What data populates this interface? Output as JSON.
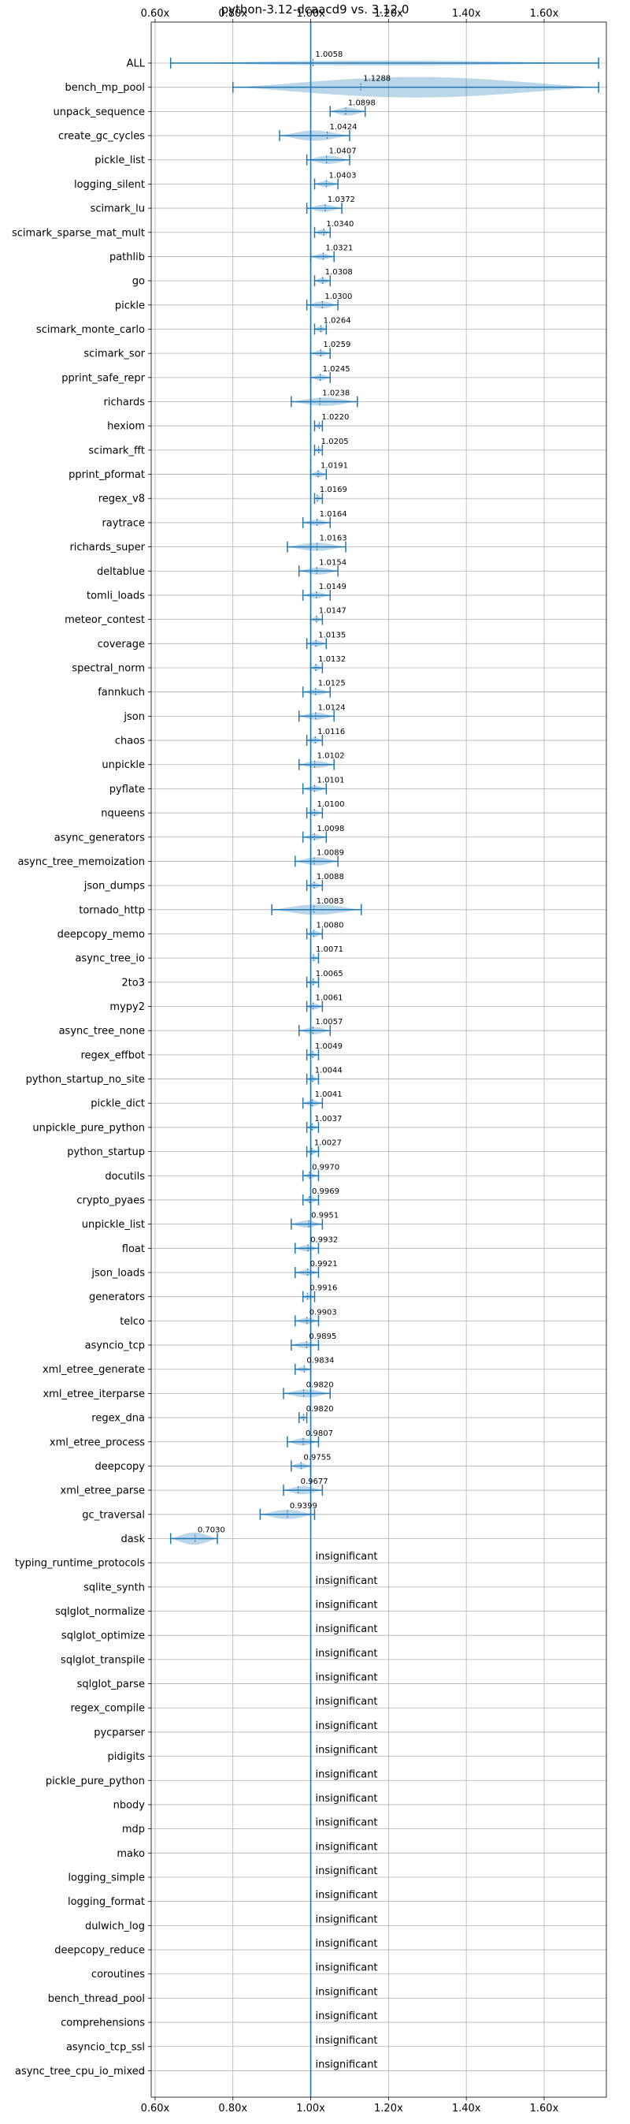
{
  "chart_data": {
    "type": "violin",
    "title": "python-3.12-dcaacd9 vs. 3.12.0",
    "xlabel": "",
    "ylabel": "",
    "x_ticks": [
      "0.60x",
      "0.80x",
      "1.00x",
      "1.20x",
      "1.40x",
      "1.60x"
    ],
    "x_tick_values": [
      0.6,
      0.8,
      1.0,
      1.2,
      1.4,
      1.6
    ],
    "xlim": [
      0.59,
      1.76
    ],
    "grid": true,
    "reference_line": 1.0,
    "insignificant_label": "insignificant",
    "colors": {
      "violin": "#1f77b4",
      "grid": "#b0b0b0"
    },
    "benchmarks": [
      {
        "name": "ALL",
        "value": 1.0058,
        "label": "1.0058",
        "min": 0.64,
        "max": 1.74,
        "width": 0.25
      },
      {
        "name": "bench_mp_pool",
        "value": 1.1288,
        "label": "1.1288",
        "min": 0.8,
        "max": 1.74,
        "width": 1.0
      },
      {
        "name": "unpack_sequence",
        "value": 1.0898,
        "label": "1.0898",
        "min": 1.05,
        "max": 1.14,
        "width": 0.4
      },
      {
        "name": "create_gc_cycles",
        "value": 1.0424,
        "label": "1.0424",
        "min": 0.92,
        "max": 1.1,
        "width": 0.5
      },
      {
        "name": "pickle_list",
        "value": 1.0407,
        "label": "1.0407",
        "min": 0.99,
        "max": 1.1,
        "width": 0.4
      },
      {
        "name": "logging_silent",
        "value": 1.0403,
        "label": "1.0403",
        "min": 1.01,
        "max": 1.07,
        "width": 0.3
      },
      {
        "name": "scimark_lu",
        "value": 1.0372,
        "label": "1.0372",
        "min": 0.99,
        "max": 1.08,
        "width": 0.35
      },
      {
        "name": "scimark_sparse_mat_mult",
        "value": 1.034,
        "label": "1.0340",
        "min": 1.01,
        "max": 1.05,
        "width": 0.3
      },
      {
        "name": "pathlib",
        "value": 1.0321,
        "label": "1.0321",
        "min": 1.0,
        "max": 1.06,
        "width": 0.3
      },
      {
        "name": "go",
        "value": 1.0308,
        "label": "1.0308",
        "min": 1.01,
        "max": 1.05,
        "width": 0.3
      },
      {
        "name": "pickle",
        "value": 1.03,
        "label": "1.0300",
        "min": 0.99,
        "max": 1.07,
        "width": 0.35
      },
      {
        "name": "scimark_monte_carlo",
        "value": 1.0264,
        "label": "1.0264",
        "min": 1.01,
        "max": 1.04,
        "width": 0.3
      },
      {
        "name": "scimark_sor",
        "value": 1.0259,
        "label": "1.0259",
        "min": 1.0,
        "max": 1.05,
        "width": 0.3
      },
      {
        "name": "pprint_safe_repr",
        "value": 1.0245,
        "label": "1.0245",
        "min": 1.0,
        "max": 1.05,
        "width": 0.3
      },
      {
        "name": "richards",
        "value": 1.0238,
        "label": "1.0238",
        "min": 0.95,
        "max": 1.12,
        "width": 0.4
      },
      {
        "name": "hexiom",
        "value": 1.022,
        "label": "1.0220",
        "min": 1.01,
        "max": 1.03,
        "width": 0.25
      },
      {
        "name": "scimark_fft",
        "value": 1.0205,
        "label": "1.0205",
        "min": 1.01,
        "max": 1.03,
        "width": 0.25
      },
      {
        "name": "pprint_pformat",
        "value": 1.0191,
        "label": "1.0191",
        "min": 1.0,
        "max": 1.04,
        "width": 0.3
      },
      {
        "name": "regex_v8",
        "value": 1.0169,
        "label": "1.0169",
        "min": 1.01,
        "max": 1.03,
        "width": 0.25
      },
      {
        "name": "raytrace",
        "value": 1.0164,
        "label": "1.0164",
        "min": 0.98,
        "max": 1.05,
        "width": 0.3
      },
      {
        "name": "richards_super",
        "value": 1.0163,
        "label": "1.0163",
        "min": 0.94,
        "max": 1.09,
        "width": 0.4
      },
      {
        "name": "deltablue",
        "value": 1.0154,
        "label": "1.0154",
        "min": 0.97,
        "max": 1.07,
        "width": 0.35
      },
      {
        "name": "tomli_loads",
        "value": 1.0149,
        "label": "1.0149",
        "min": 0.98,
        "max": 1.05,
        "width": 0.3
      },
      {
        "name": "meteor_contest",
        "value": 1.0147,
        "label": "1.0147",
        "min": 1.0,
        "max": 1.03,
        "width": 0.25
      },
      {
        "name": "coverage",
        "value": 1.0135,
        "label": "1.0135",
        "min": 0.99,
        "max": 1.04,
        "width": 0.3
      },
      {
        "name": "spectral_norm",
        "value": 1.0132,
        "label": "1.0132",
        "min": 1.0,
        "max": 1.03,
        "width": 0.3
      },
      {
        "name": "fannkuch",
        "value": 1.0125,
        "label": "1.0125",
        "min": 0.98,
        "max": 1.05,
        "width": 0.3
      },
      {
        "name": "json",
        "value": 1.0124,
        "label": "1.0124",
        "min": 0.97,
        "max": 1.06,
        "width": 0.35
      },
      {
        "name": "chaos",
        "value": 1.0116,
        "label": "1.0116",
        "min": 0.99,
        "max": 1.03,
        "width": 0.3
      },
      {
        "name": "unpickle",
        "value": 1.0102,
        "label": "1.0102",
        "min": 0.97,
        "max": 1.06,
        "width": 0.35
      },
      {
        "name": "pyflate",
        "value": 1.0101,
        "label": "1.0101",
        "min": 0.98,
        "max": 1.04,
        "width": 0.3
      },
      {
        "name": "nqueens",
        "value": 1.01,
        "label": "1.0100",
        "min": 0.99,
        "max": 1.03,
        "width": 0.3
      },
      {
        "name": "async_generators",
        "value": 1.0098,
        "label": "1.0098",
        "min": 0.98,
        "max": 1.04,
        "width": 0.3
      },
      {
        "name": "async_tree_memoization",
        "value": 1.0089,
        "label": "1.0089",
        "min": 0.96,
        "max": 1.07,
        "width": 0.4
      },
      {
        "name": "json_dumps",
        "value": 1.0088,
        "label": "1.0088",
        "min": 0.99,
        "max": 1.03,
        "width": 0.3
      },
      {
        "name": "tornado_http",
        "value": 1.0083,
        "label": "1.0083",
        "min": 0.9,
        "max": 1.13,
        "width": 0.5
      },
      {
        "name": "deepcopy_memo",
        "value": 1.008,
        "label": "1.0080",
        "min": 0.99,
        "max": 1.03,
        "width": 0.3
      },
      {
        "name": "async_tree_io",
        "value": 1.0071,
        "label": "1.0071",
        "min": 1.0,
        "max": 1.02,
        "width": 0.25
      },
      {
        "name": "2to3",
        "value": 1.0065,
        "label": "1.0065",
        "min": 0.99,
        "max": 1.02,
        "width": 0.25
      },
      {
        "name": "mypy2",
        "value": 1.0061,
        "label": "1.0061",
        "min": 0.99,
        "max": 1.03,
        "width": 0.3
      },
      {
        "name": "async_tree_none",
        "value": 1.0057,
        "label": "1.0057",
        "min": 0.97,
        "max": 1.05,
        "width": 0.35
      },
      {
        "name": "regex_effbot",
        "value": 1.0049,
        "label": "1.0049",
        "min": 0.99,
        "max": 1.02,
        "width": 0.25
      },
      {
        "name": "python_startup_no_site",
        "value": 1.0044,
        "label": "1.0044",
        "min": 0.99,
        "max": 1.02,
        "width": 0.25
      },
      {
        "name": "pickle_dict",
        "value": 1.0041,
        "label": "1.0041",
        "min": 0.98,
        "max": 1.03,
        "width": 0.3
      },
      {
        "name": "unpickle_pure_python",
        "value": 1.0037,
        "label": "1.0037",
        "min": 0.99,
        "max": 1.02,
        "width": 0.25
      },
      {
        "name": "python_startup",
        "value": 1.0027,
        "label": "1.0027",
        "min": 0.99,
        "max": 1.02,
        "width": 0.25
      },
      {
        "name": "docutils",
        "value": 0.997,
        "label": "0.9970",
        "min": 0.98,
        "max": 1.02,
        "width": 0.25
      },
      {
        "name": "crypto_pyaes",
        "value": 0.9969,
        "label": "0.9969",
        "min": 0.98,
        "max": 1.02,
        "width": 0.3
      },
      {
        "name": "unpickle_list",
        "value": 0.9951,
        "label": "0.9951",
        "min": 0.95,
        "max": 1.03,
        "width": 0.35
      },
      {
        "name": "float",
        "value": 0.9932,
        "label": "0.9932",
        "min": 0.96,
        "max": 1.02,
        "width": 0.3
      },
      {
        "name": "json_loads",
        "value": 0.9921,
        "label": "0.9921",
        "min": 0.96,
        "max": 1.02,
        "width": 0.3
      },
      {
        "name": "generators",
        "value": 0.9916,
        "label": "0.9916",
        "min": 0.98,
        "max": 1.01,
        "width": 0.25
      },
      {
        "name": "telco",
        "value": 0.9903,
        "label": "0.9903",
        "min": 0.96,
        "max": 1.02,
        "width": 0.3
      },
      {
        "name": "asyncio_tcp",
        "value": 0.9895,
        "label": "0.9895",
        "min": 0.95,
        "max": 1.02,
        "width": 0.3
      },
      {
        "name": "xml_etree_generate",
        "value": 0.9834,
        "label": "0.9834",
        "min": 0.96,
        "max": 1.0,
        "width": 0.25
      },
      {
        "name": "xml_etree_iterparse",
        "value": 0.982,
        "label": "0.9820",
        "min": 0.93,
        "max": 1.05,
        "width": 0.4
      },
      {
        "name": "regex_dna",
        "value": 0.982,
        "label": "0.9820",
        "min": 0.97,
        "max": 0.99,
        "width": 0.25
      },
      {
        "name": "xml_etree_process",
        "value": 0.9807,
        "label": "0.9807",
        "min": 0.94,
        "max": 1.02,
        "width": 0.35
      },
      {
        "name": "deepcopy",
        "value": 0.9755,
        "label": "0.9755",
        "min": 0.95,
        "max": 1.0,
        "width": 0.3
      },
      {
        "name": "xml_etree_parse",
        "value": 0.9677,
        "label": "0.9677",
        "min": 0.93,
        "max": 1.03,
        "width": 0.4
      },
      {
        "name": "gc_traversal",
        "value": 0.9399,
        "label": "0.9399",
        "min": 0.87,
        "max": 1.01,
        "width": 0.45
      },
      {
        "name": "dask",
        "value": 0.703,
        "label": "0.7030",
        "min": 0.64,
        "max": 0.76,
        "width": 0.6
      },
      {
        "name": "typing_runtime_protocols",
        "insignificant": true
      },
      {
        "name": "sqlite_synth",
        "insignificant": true
      },
      {
        "name": "sqlglot_normalize",
        "insignificant": true
      },
      {
        "name": "sqlglot_optimize",
        "insignificant": true
      },
      {
        "name": "sqlglot_transpile",
        "insignificant": true
      },
      {
        "name": "sqlglot_parse",
        "insignificant": true
      },
      {
        "name": "regex_compile",
        "insignificant": true
      },
      {
        "name": "pycparser",
        "insignificant": true
      },
      {
        "name": "pidigits",
        "insignificant": true
      },
      {
        "name": "pickle_pure_python",
        "insignificant": true
      },
      {
        "name": "nbody",
        "insignificant": true
      },
      {
        "name": "mdp",
        "insignificant": true
      },
      {
        "name": "mako",
        "insignificant": true
      },
      {
        "name": "logging_simple",
        "insignificant": true
      },
      {
        "name": "logging_format",
        "insignificant": true
      },
      {
        "name": "dulwich_log",
        "insignificant": true
      },
      {
        "name": "deepcopy_reduce",
        "insignificant": true
      },
      {
        "name": "coroutines",
        "insignificant": true
      },
      {
        "name": "bench_thread_pool",
        "insignificant": true
      },
      {
        "name": "comprehensions",
        "insignificant": true
      },
      {
        "name": "asyncio_tcp_ssl",
        "insignificant": true
      },
      {
        "name": "async_tree_cpu_io_mixed",
        "insignificant": true
      }
    ]
  }
}
